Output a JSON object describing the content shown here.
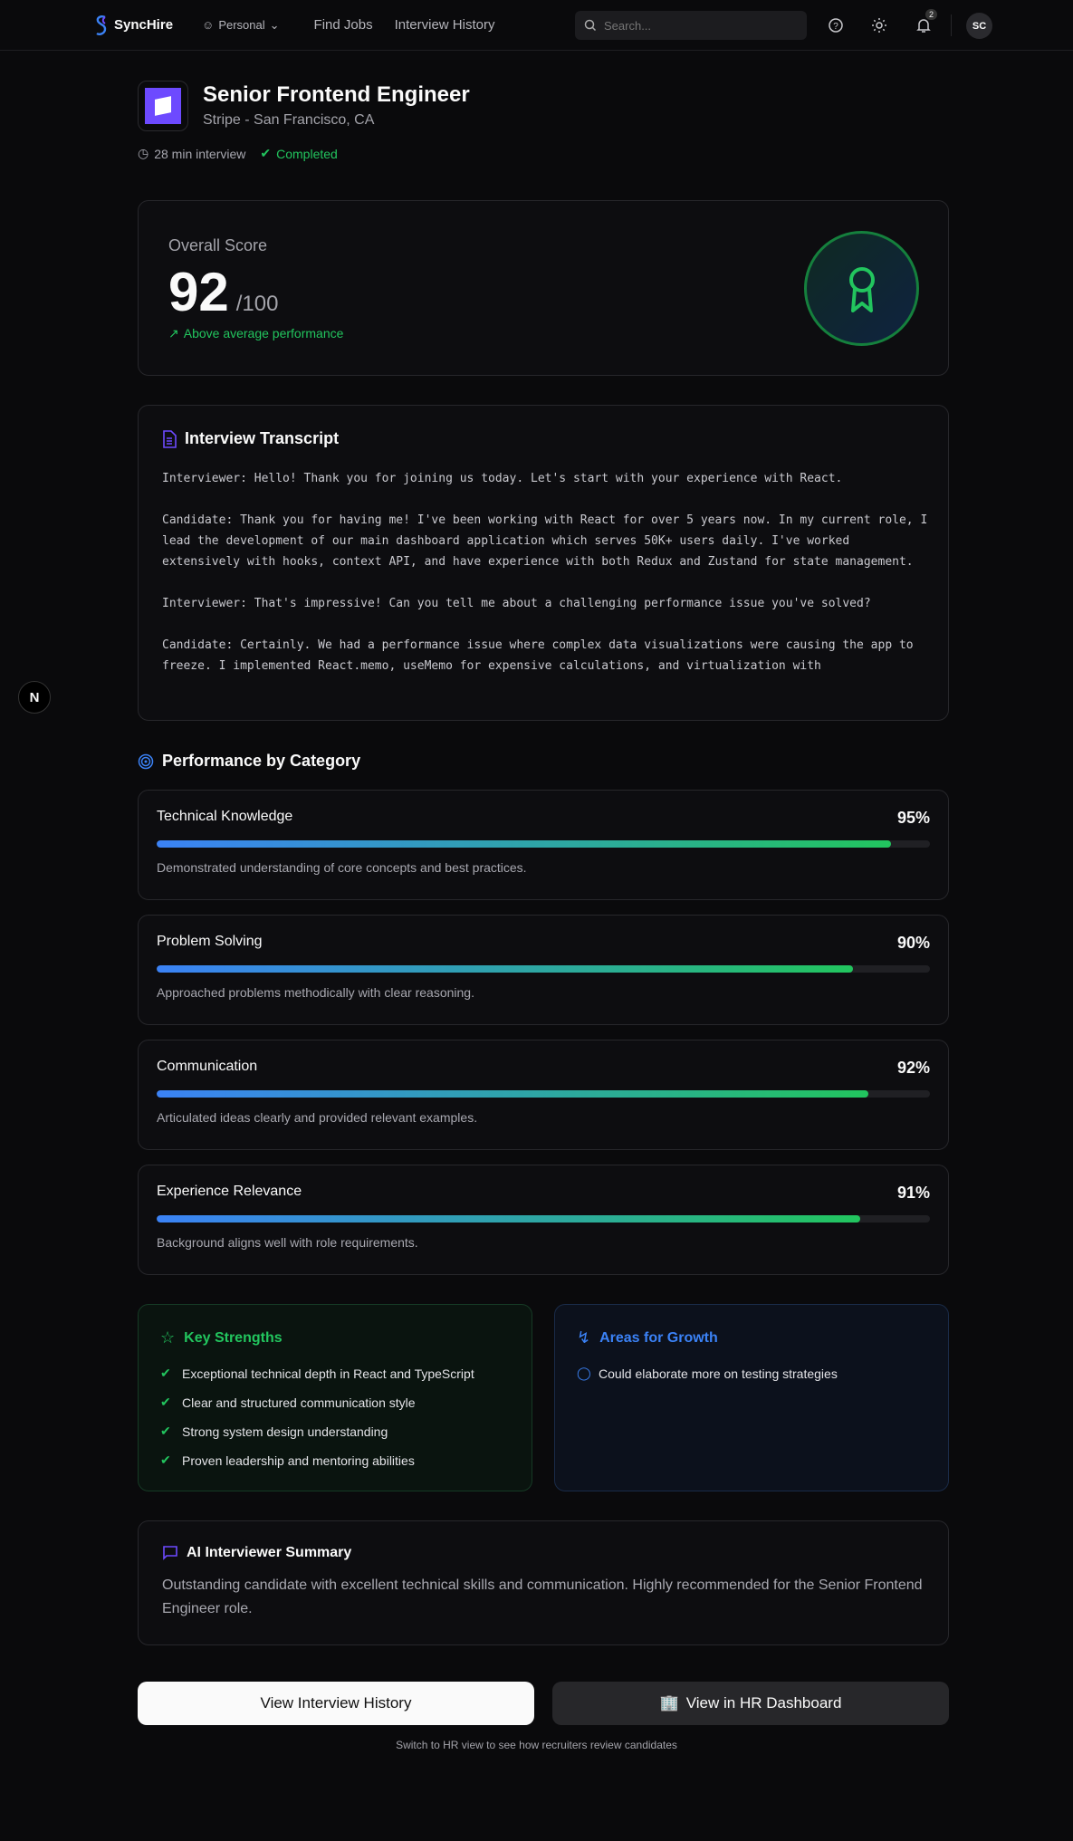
{
  "header": {
    "brand": "SyncHire",
    "mode": "Personal",
    "nav": [
      "Find Jobs",
      "Interview History"
    ],
    "search_placeholder": "Search...",
    "notifications": "2",
    "avatar": "SC"
  },
  "job": {
    "title": "Senior Frontend Engineer",
    "company": "Stripe - San Francisco, CA",
    "duration": "28 min interview",
    "status": "Completed"
  },
  "score": {
    "label": "Overall Score",
    "value": "92",
    "max": "/100",
    "trend": "Above average performance"
  },
  "transcript": {
    "title": "Interview Transcript",
    "text": "Interviewer: Hello! Thank you for joining us today. Let's start with your experience with React.\n\nCandidate: Thank you for having me! I've been working with React for over 5 years now. In my current role, I lead the development of our main dashboard application which serves 50K+ users daily. I've worked extensively with hooks, context API, and have experience with both Redux and Zustand for state management.\n\nInterviewer: That's impressive! Can you tell me about a challenging performance issue you've solved?\n\nCandidate: Certainly. We had a performance issue where complex data visualizations were causing the app to freeze. I implemented React.memo, useMemo for expensive calculations, and virtualization with"
  },
  "performance": {
    "title": "Performance by Category",
    "categories": [
      {
        "name": "Technical Knowledge",
        "percent": 95,
        "label": "95%",
        "desc": "Demonstrated understanding of core concepts and best practices."
      },
      {
        "name": "Problem Solving",
        "percent": 90,
        "label": "90%",
        "desc": "Approached problems methodically with clear reasoning."
      },
      {
        "name": "Communication",
        "percent": 92,
        "label": "92%",
        "desc": "Articulated ideas clearly and provided relevant examples."
      },
      {
        "name": "Experience Relevance",
        "percent": 91,
        "label": "91%",
        "desc": "Background aligns well with role requirements."
      }
    ]
  },
  "strengths": {
    "title": "Key Strengths",
    "items": [
      "Exceptional technical depth in React and TypeScript",
      "Clear and structured communication style",
      "Strong system design understanding",
      "Proven leadership and mentoring abilities"
    ]
  },
  "growth": {
    "title": "Areas for Growth",
    "items": [
      "Could elaborate more on testing strategies"
    ]
  },
  "summary": {
    "title": "AI Interviewer Summary",
    "text": "Outstanding candidate with excellent technical skills and communication. Highly recommended for the Senior Frontend Engineer role."
  },
  "actions": {
    "history": "View Interview History",
    "hr": "View in HR Dashboard",
    "note": "Switch to HR view to see how recruiters review candidates"
  },
  "colors": {
    "accent": "#6d4aff",
    "success": "#22c55e",
    "info": "#3b82f6"
  }
}
